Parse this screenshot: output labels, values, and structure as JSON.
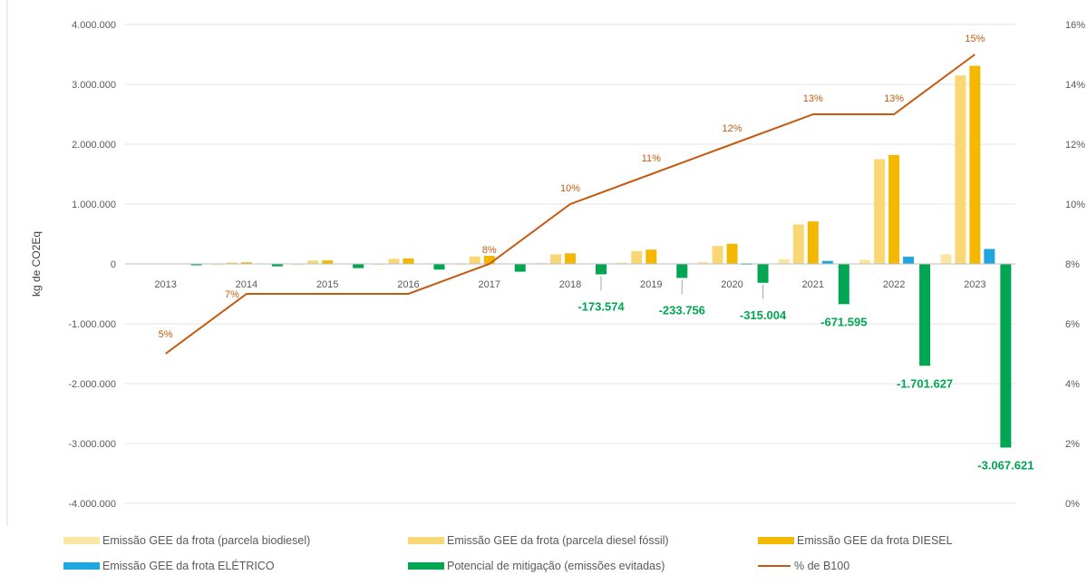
{
  "chart_data": {
    "type": "bar",
    "ylabel": "kg de CO2Eq",
    "categories": [
      "2013",
      "2014",
      "2015",
      "2016",
      "2017",
      "2018",
      "2019",
      "2020",
      "2021",
      "2022",
      "2023"
    ],
    "y_left": {
      "ylim": [
        -4000000,
        4000000
      ],
      "ticks": [
        4000000,
        3000000,
        2000000,
        1000000,
        0,
        -1000000,
        -2000000,
        -3000000,
        -4000000
      ],
      "tick_labels": [
        "4.000.000",
        "3.000.000",
        "2.000.000",
        "1.000.000",
        "0",
        "-1.000.000",
        "-2.000.000",
        "-3.000.000",
        "-4.000.000"
      ]
    },
    "y_right": {
      "ylim": [
        0,
        16
      ],
      "ticks": [
        16,
        14,
        12,
        10,
        8,
        6,
        4,
        2,
        0
      ],
      "tick_labels": [
        "16%",
        "14%",
        "12%",
        "10%",
        "8%",
        "6%",
        "4%",
        "2%",
        "0%"
      ]
    },
    "grid": true,
    "legend_position": "bottom",
    "series": [
      {
        "name": "Emissão GEE da frota (parcela biodiesel)",
        "type": "bar",
        "color": "#fbe5a5",
        "values": [
          0,
          2000,
          4000,
          7000,
          11000,
          17000,
          24000,
          36000,
          80000,
          70000,
          160000
        ]
      },
      {
        "name": "Emissão GEE da frota (parcela diesel fóssil)",
        "type": "bar",
        "color": "#f9d774",
        "values": [
          0,
          25000,
          55000,
          85000,
          125000,
          160000,
          215000,
          300000,
          660000,
          1750000,
          3150000
        ]
      },
      {
        "name": "Emissão GEE da frota DIESEL",
        "type": "bar",
        "color": "#f5b800",
        "values": [
          0,
          27000,
          59000,
          92000,
          136000,
          177000,
          239000,
          336000,
          710000,
          1820000,
          3310000
        ]
      },
      {
        "name": "Emissão GEE da frota ELÉTRICO",
        "type": "bar",
        "color": "#1fa5e0",
        "values": [
          0,
          0,
          0,
          0,
          0,
          0,
          0,
          10000,
          50000,
          120000,
          250000
        ]
      },
      {
        "name": "Potencial de mitigação (emissões evitadas)",
        "type": "bar",
        "color": "#00a651",
        "values": [
          -20000,
          -40000,
          -70000,
          -95000,
          -130000,
          -173574,
          -233756,
          -315004,
          -671595,
          -1701627,
          -3067621
        ]
      },
      {
        "name": "% de B100",
        "type": "line",
        "axis": "right",
        "color": "#c55a11",
        "values": [
          5,
          7,
          7,
          7,
          8,
          10,
          11,
          12,
          13,
          13,
          15
        ]
      }
    ],
    "pct_labels": [
      "5%",
      "7%",
      "",
      "",
      "8%",
      "10%",
      "11%",
      "12%",
      "13%",
      "13%",
      "15%"
    ],
    "mitigation_labels": [
      "",
      "",
      "",
      "",
      "",
      "-173.574",
      "-233.756",
      "-315.004",
      "-671.595",
      "-1.701.627",
      "-3.067.621"
    ]
  }
}
